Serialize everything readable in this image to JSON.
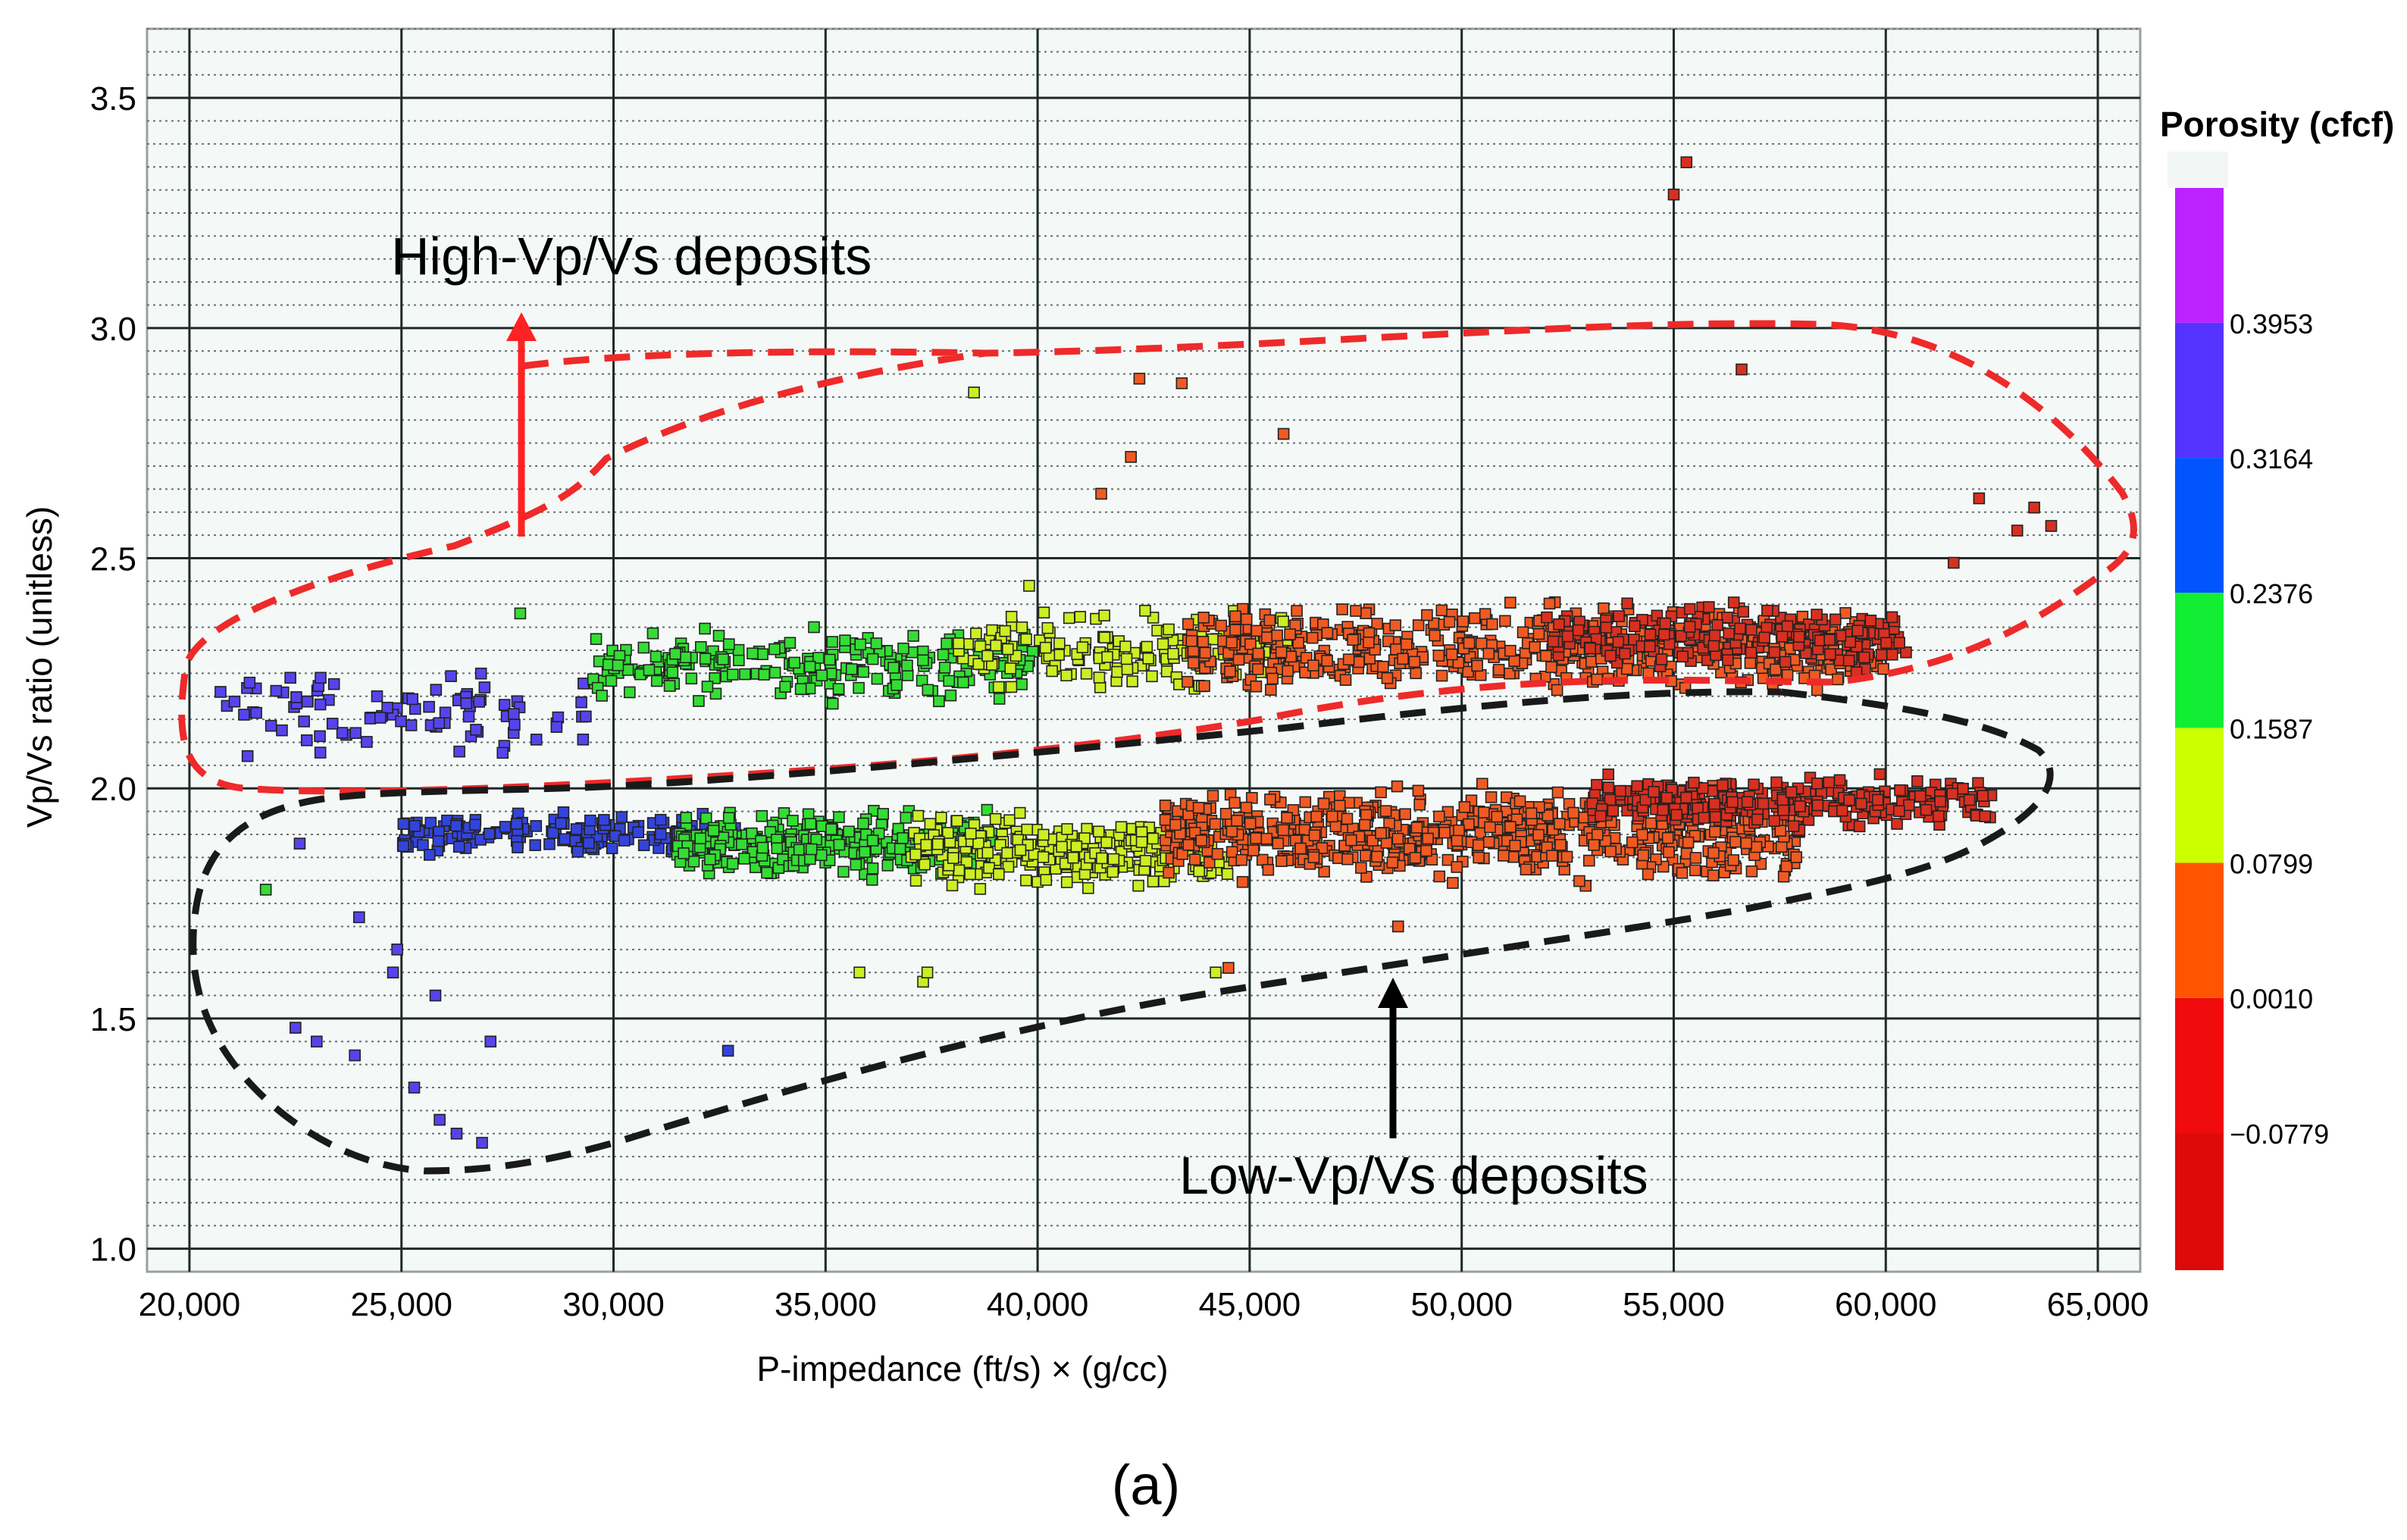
{
  "chart_data": {
    "type": "scatter",
    "title": "",
    "xlabel": "P-impedance (ft/s) × (g/cc)",
    "ylabel": "Vp/Vs ratio (unitless)",
    "xlim": [
      19000,
      66000
    ],
    "ylim": [
      0.95,
      3.65
    ],
    "x_ticks": [
      20000,
      25000,
      30000,
      35000,
      40000,
      45000,
      50000,
      55000,
      60000,
      65000
    ],
    "x_tick_labels": [
      "20,000",
      "25,000",
      "30,000",
      "35,000",
      "40,000",
      "45,000",
      "50,000",
      "55,000",
      "60,000",
      "65,000"
    ],
    "y_ticks": [
      1.0,
      1.5,
      2.0,
      2.5,
      3.0,
      3.5
    ],
    "y_tick_labels": [
      "1.0",
      "1.5",
      "2.0",
      "2.5",
      "3.0",
      "3.5"
    ],
    "minor_grid": true,
    "colorbar": {
      "title": "Porosity (cfcf)",
      "range": [
        -0.158,
        0.474
      ],
      "bands": [
        {
          "from": -0.158,
          "to": -0.0779,
          "color": "#dd0a0a"
        },
        {
          "from": -0.0779,
          "to": 0.001,
          "color": "#f00c0c"
        },
        {
          "from": 0.001,
          "to": 0.0799,
          "color": "#ff5500"
        },
        {
          "from": 0.0799,
          "to": 0.1587,
          "color": "#ccff00"
        },
        {
          "from": 0.1587,
          "to": 0.2376,
          "color": "#11ee33"
        },
        {
          "from": 0.2376,
          "to": 0.3164,
          "color": "#0055ff"
        },
        {
          "from": 0.3164,
          "to": 0.3953,
          "color": "#5533ff"
        },
        {
          "from": 0.3953,
          "to": 0.474,
          "color": "#bb22ff"
        }
      ],
      "tick_values": [
        -0.0779,
        0.001,
        0.0799,
        0.1587,
        0.2376,
        0.3164,
        0.3953
      ],
      "tick_labels": [
        "−0.0779",
        "0.0010",
        "0.0799",
        "0.1587",
        "0.2376",
        "0.3164",
        "0.3953"
      ]
    },
    "clusters": [
      {
        "name": "upper-purple",
        "x": [
          20500,
          29500
        ],
        "y_center": 2.16,
        "y_spread": 0.12,
        "color": "#5544ee",
        "count": 90
      },
      {
        "name": "upper-green",
        "x": [
          29500,
          40000
        ],
        "y_center": 2.27,
        "y_spread": 0.1,
        "color": "#33dd33",
        "count": 230
      },
      {
        "name": "upper-yellow",
        "x": [
          38000,
          46000
        ],
        "y_center": 2.3,
        "y_spread": 0.11,
        "color": "#ccee22",
        "count": 170
      },
      {
        "name": "upper-orange",
        "x": [
          43500,
          60000
        ],
        "y_center": 2.3,
        "y_spread": 0.12,
        "color": "#f05a22",
        "count": 560
      },
      {
        "name": "upper-red",
        "x": [
          52000,
          60500
        ],
        "y_center": 2.33,
        "y_spread": 0.1,
        "color": "#d83020",
        "count": 220
      },
      {
        "name": "lower-blue",
        "x": [
          25000,
          33000
        ],
        "y_center": 1.9,
        "y_spread": 0.06,
        "color": "#3344dd",
        "count": 180
      },
      {
        "name": "lower-green",
        "x": [
          31500,
          39000
        ],
        "y_center": 1.88,
        "y_spread": 0.09,
        "color": "#33dd33",
        "count": 300
      },
      {
        "name": "lower-yellow",
        "x": [
          37000,
          44500
        ],
        "y_center": 1.86,
        "y_spread": 0.1,
        "color": "#ccee22",
        "count": 260
      },
      {
        "name": "lower-orange",
        "x": [
          43000,
          58000
        ],
        "y_center": 1.9,
        "y_spread": 0.13,
        "color": "#f05a22",
        "count": 620
      },
      {
        "name": "lower-red",
        "x": [
          53000,
          62500
        ],
        "y_center": 1.97,
        "y_spread": 0.07,
        "color": "#d83020",
        "count": 300
      }
    ],
    "outliers": [
      {
        "x": 55300,
        "y": 3.36,
        "color": "#d83020"
      },
      {
        "x": 55000,
        "y": 3.29,
        "color": "#d83020"
      },
      {
        "x": 56600,
        "y": 2.91,
        "color": "#d83020"
      },
      {
        "x": 42400,
        "y": 2.89,
        "color": "#f05a22"
      },
      {
        "x": 43400,
        "y": 2.88,
        "color": "#f05a22"
      },
      {
        "x": 45800,
        "y": 2.77,
        "color": "#f05a22"
      },
      {
        "x": 38500,
        "y": 2.86,
        "color": "#ccee22"
      },
      {
        "x": 42200,
        "y": 2.72,
        "color": "#f05a22"
      },
      {
        "x": 41500,
        "y": 2.64,
        "color": "#f05a22"
      },
      {
        "x": 62200,
        "y": 2.63,
        "color": "#d83020"
      },
      {
        "x": 63500,
        "y": 2.61,
        "color": "#d83020"
      },
      {
        "x": 63900,
        "y": 2.57,
        "color": "#d83020"
      },
      {
        "x": 63100,
        "y": 2.56,
        "color": "#d83020"
      },
      {
        "x": 61600,
        "y": 2.49,
        "color": "#d83020"
      },
      {
        "x": 21800,
        "y": 1.78,
        "color": "#33dd33"
      },
      {
        "x": 22500,
        "y": 1.48,
        "color": "#5544ee"
      },
      {
        "x": 23000,
        "y": 1.45,
        "color": "#5544ee"
      },
      {
        "x": 23900,
        "y": 1.42,
        "color": "#5544ee"
      },
      {
        "x": 25800,
        "y": 1.55,
        "color": "#5544ee"
      },
      {
        "x": 25300,
        "y": 1.35,
        "color": "#5544ee"
      },
      {
        "x": 25900,
        "y": 1.28,
        "color": "#5544ee"
      },
      {
        "x": 26300,
        "y": 1.25,
        "color": "#5544ee"
      },
      {
        "x": 26900,
        "y": 1.23,
        "color": "#5544ee"
      },
      {
        "x": 27100,
        "y": 1.45,
        "color": "#5544ee"
      },
      {
        "x": 32700,
        "y": 1.43,
        "color": "#3344dd"
      },
      {
        "x": 24800,
        "y": 1.6,
        "color": "#5544ee"
      },
      {
        "x": 24900,
        "y": 1.65,
        "color": "#5544ee"
      },
      {
        "x": 24000,
        "y": 1.72,
        "color": "#5544ee"
      },
      {
        "x": 22600,
        "y": 1.88,
        "color": "#5544ee"
      },
      {
        "x": 35800,
        "y": 1.6,
        "color": "#ccee22"
      },
      {
        "x": 37300,
        "y": 1.58,
        "color": "#ccee22"
      },
      {
        "x": 37400,
        "y": 1.6,
        "color": "#ccee22"
      },
      {
        "x": 44200,
        "y": 1.6,
        "color": "#ccee22"
      },
      {
        "x": 44500,
        "y": 1.61,
        "color": "#f05a22"
      },
      {
        "x": 48500,
        "y": 1.7,
        "color": "#f05a22"
      },
      {
        "x": 27800,
        "y": 2.38,
        "color": "#33dd33"
      },
      {
        "x": 39800,
        "y": 2.44,
        "color": "#ccee22"
      }
    ],
    "annotations": [
      {
        "text": "High-Vp/Vs deposits",
        "arrow_to": [
          28000,
          3.0
        ],
        "arrow_from": [
          28000,
          2.54
        ],
        "color": "#ff2222"
      },
      {
        "text": "Low-Vp/Vs deposits",
        "arrow_to": [
          48400,
          1.6
        ],
        "arrow_from": [
          48400,
          1.28
        ],
        "color": "#000000"
      }
    ],
    "enclosures": [
      {
        "label": "high",
        "style": "dashed",
        "color": "#ee2a2a"
      },
      {
        "label": "low",
        "style": "dashed",
        "color": "#1a1a1a"
      }
    ],
    "panel_label": "(a)"
  }
}
